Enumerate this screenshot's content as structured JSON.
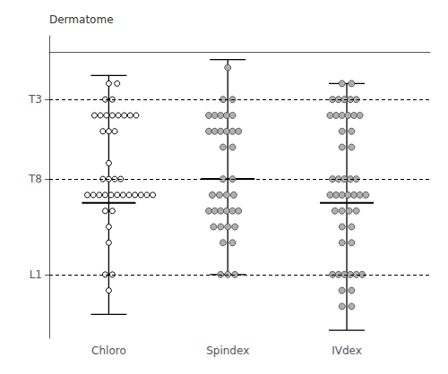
{
  "chart_data": {
    "type": "scatter",
    "ylabel": "Dermatome",
    "xlim": [
      0.5,
      3.7
    ],
    "xticks": [
      {
        "value": 1,
        "label": "Chloro"
      },
      {
        "value": 2,
        "label": "Spindex"
      },
      {
        "value": 3,
        "label": "IVdex"
      }
    ],
    "ylim": [
      18,
      -1
    ],
    "yticks": [
      {
        "value": 3,
        "label": "T3"
      },
      {
        "value": 8,
        "label": "T8"
      },
      {
        "value": 14,
        "label": "L1"
      }
    ],
    "reference_lines": [
      3,
      8,
      14
    ],
    "grid": false,
    "series": [
      {
        "color": "#ffffff",
        "marker": "hollow",
        "whisker_top": 1.5,
        "whisker_bottom": 16.5,
        "median": 9.5,
        "x": [
          1.0,
          1.07,
          0.97,
          1.03,
          0.88,
          0.93,
          0.98,
          1.03,
          1.08,
          1.13,
          1.18,
          1.23,
          0.95,
          1.0,
          1.05,
          1.0,
          0.95,
          1.0,
          1.05,
          1.1,
          0.82,
          0.87,
          0.92,
          0.97,
          1.02,
          1.07,
          1.12,
          1.17,
          1.22,
          1.27,
          1.32,
          1.37,
          0.97,
          1.03,
          1.0,
          1.0,
          0.97,
          1.03,
          1.0
        ],
        "values": [
          2,
          2,
          3,
          3,
          4,
          4,
          4,
          4,
          4,
          4,
          4,
          4,
          5,
          5,
          5,
          7,
          8,
          8,
          8,
          8,
          9,
          9,
          9,
          9,
          9,
          9,
          9,
          9,
          9,
          9,
          9,
          9,
          10,
          10,
          11,
          12,
          14,
          14,
          15
        ]
      },
      {
        "color": "#b0b0b0",
        "marker": "filled",
        "whisker_top": 0.5,
        "whisker_bottom": 14.0,
        "median": 8.0,
        "x": [
          2.0,
          1.96,
          2.04,
          1.84,
          1.89,
          1.94,
          1.99,
          2.04,
          1.84,
          1.89,
          1.94,
          1.99,
          2.04,
          2.09,
          1.96,
          2.04,
          1.96,
          2.04,
          1.87,
          1.93,
          1.99,
          2.05,
          1.84,
          1.89,
          1.94,
          1.99,
          2.04,
          2.09,
          1.88,
          1.94,
          2.0,
          2.06,
          1.96,
          2.04,
          1.94,
          2.0,
          2.06
        ],
        "values": [
          1,
          3,
          3,
          4,
          4,
          4,
          4,
          4,
          5,
          5,
          5,
          5,
          5,
          5,
          6,
          6,
          8,
          8,
          9,
          9,
          9,
          9,
          10,
          10,
          10,
          10,
          10,
          10,
          11,
          11,
          11,
          11,
          12,
          12,
          14,
          14,
          14
        ]
      },
      {
        "color": "#b0b0b0",
        "marker": "filled",
        "whisker_top": 2.0,
        "whisker_bottom": 17.5,
        "median": 9.5,
        "x": [
          2.96,
          3.04,
          2.88,
          2.93,
          2.98,
          3.03,
          3.08,
          2.86,
          2.91,
          2.96,
          3.01,
          3.06,
          3.11,
          2.96,
          3.04,
          2.96,
          3.04,
          2.88,
          2.93,
          2.98,
          3.03,
          3.08,
          2.86,
          2.91,
          2.96,
          3.01,
          3.06,
          3.11,
          3.16,
          2.9,
          2.96,
          3.02,
          3.08,
          2.96,
          3.04,
          2.96,
          3.04,
          2.88,
          2.93,
          2.98,
          3.03,
          3.08,
          3.13,
          2.96,
          3.04,
          2.96,
          3.04
        ],
        "values": [
          2,
          2,
          3,
          3,
          3,
          3,
          3,
          4,
          4,
          4,
          4,
          4,
          4,
          5,
          5,
          6,
          6,
          8,
          8,
          8,
          8,
          8,
          9,
          9,
          9,
          9,
          9,
          9,
          9,
          10,
          10,
          10,
          10,
          11,
          11,
          12,
          12,
          14,
          14,
          14,
          14,
          14,
          14,
          15,
          15,
          16,
          16
        ]
      }
    ]
  }
}
